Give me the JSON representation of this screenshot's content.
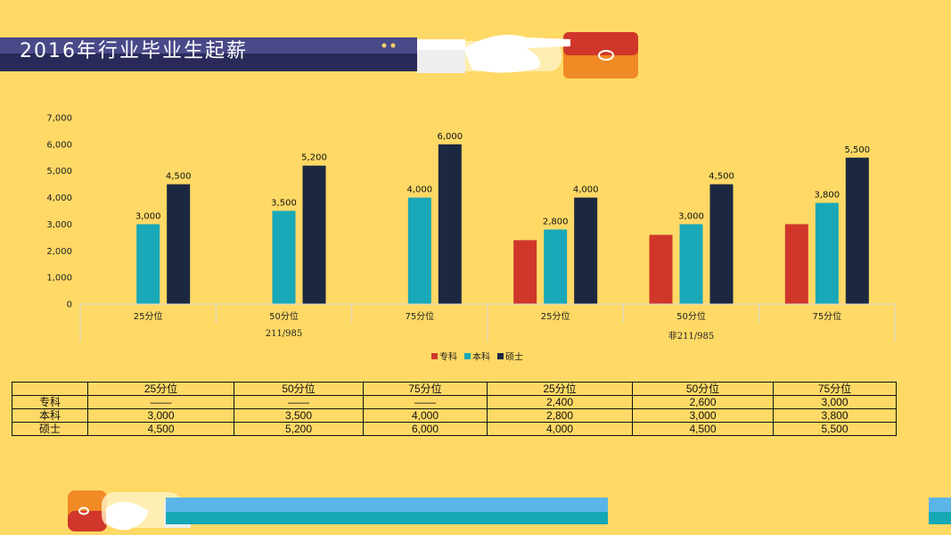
{
  "title": "2016年行业毕业生起薪",
  "colors": {
    "background": "#FFD966",
    "banner": "#4A4A8A",
    "zhuanke": "#D0362A",
    "benke": "#19A8B8",
    "shuoshi": "#1B2840"
  },
  "chart_data": {
    "type": "bar",
    "groups": [
      {
        "label": "211/985",
        "categories": [
          "25分位",
          "50分位",
          "75分位"
        ]
      },
      {
        "label": "非211/985",
        "categories": [
          "25分位",
          "50分位",
          "75分位"
        ]
      }
    ],
    "categories": [
      "25分位",
      "50分位",
      "75分位",
      "25分位",
      "50分位",
      "75分位"
    ],
    "series": [
      {
        "name": "专科",
        "values": [
          null,
          null,
          null,
          2400,
          2600,
          3000
        ],
        "labels": [
          "",
          "",
          "",
          "",
          "",
          ""
        ]
      },
      {
        "name": "本科",
        "values": [
          3000,
          3500,
          4000,
          2800,
          3000,
          3800
        ],
        "labels": [
          "3,000",
          "3,500",
          "4,000",
          "2,800",
          "3,000",
          "3,800"
        ]
      },
      {
        "name": "硕士",
        "values": [
          4500,
          5200,
          6000,
          4000,
          4500,
          5500
        ],
        "labels": [
          "4,500",
          "5,200",
          "6,000",
          "4,000",
          "4,500",
          "5,500"
        ]
      }
    ],
    "ylim": [
      0,
      7000
    ],
    "yticks": [
      "0",
      "1,000",
      "2,000",
      "3,000",
      "4,000",
      "5,000",
      "6,000",
      "7,000"
    ],
    "grid": false,
    "legend": "bottom"
  },
  "table": {
    "header": [
      "",
      "25分位",
      "50分位",
      "75分位",
      "25分位",
      "50分位",
      "75分位"
    ],
    "rows": [
      [
        "专科",
        "——",
        "——",
        "——",
        "2,400",
        "2,600",
        "3,000"
      ],
      [
        "本科",
        "3,000",
        "3,500",
        "4,000",
        "2,800",
        "3,000",
        "3,800"
      ],
      [
        "硕士",
        "4,500",
        "5,200",
        "6,000",
        "4,000",
        "4,500",
        "5,500"
      ]
    ]
  }
}
